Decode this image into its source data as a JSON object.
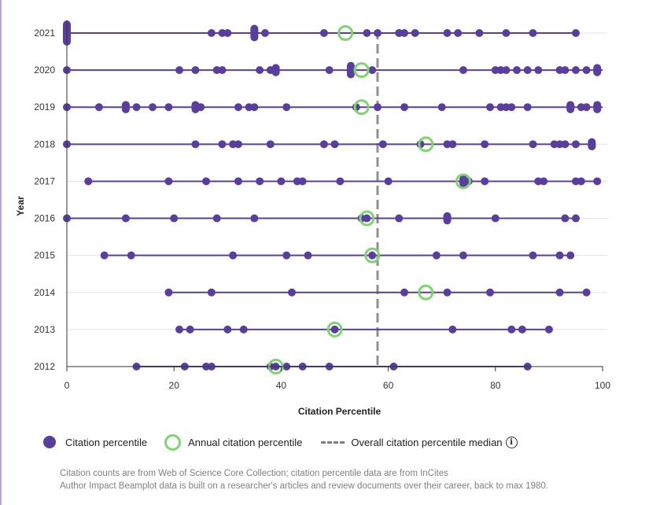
{
  "chart_data": {
    "type": "scatter",
    "title": "",
    "xlabel": "Citation Percentile",
    "ylabel": "Year",
    "xlim": [
      0,
      100
    ],
    "x_ticks": [
      "0",
      "20",
      "40",
      "60",
      "80",
      "100"
    ],
    "categories": [
      "2021",
      "2020",
      "2019",
      "2018",
      "2017",
      "2016",
      "2015",
      "2014",
      "2013",
      "2012"
    ],
    "median": 58,
    "colors": {
      "point": "#5a3e9e",
      "line": "#5a3e9e",
      "annual": "#7ed56f",
      "median": "#909090",
      "grid": "#e3e3e3"
    },
    "series": [
      {
        "year": "2021",
        "annual": 52,
        "range": [
          0,
          95
        ],
        "points": [
          0,
          0,
          0,
          0,
          0,
          27,
          29,
          30,
          35,
          35,
          35,
          37,
          48,
          56,
          58,
          62,
          63,
          65,
          71,
          73,
          77,
          82,
          87,
          95
        ]
      },
      {
        "year": "2020",
        "annual": 55,
        "range": [
          0,
          100
        ],
        "points": [
          0,
          21,
          24,
          28,
          29,
          36,
          38,
          39,
          39,
          49,
          53,
          53,
          53,
          57,
          74,
          80,
          81,
          82,
          84,
          86,
          88,
          92,
          93,
          95,
          97,
          99,
          99
        ]
      },
      {
        "year": "2019",
        "annual": 55,
        "range": [
          0,
          100
        ],
        "points": [
          0,
          6,
          11,
          11,
          13,
          16,
          19,
          24,
          24,
          25,
          32,
          34,
          35,
          41,
          54,
          58,
          63,
          70,
          79,
          81,
          82,
          83,
          86,
          94,
          94,
          96,
          97,
          99,
          99
        ]
      },
      {
        "year": "2018",
        "annual": 67,
        "range": [
          0,
          98
        ],
        "points": [
          0,
          24,
          29,
          31,
          32,
          38,
          48,
          50,
          59,
          66,
          71,
          72,
          78,
          87,
          91,
          92,
          93,
          95,
          98,
          98
        ]
      },
      {
        "year": "2017",
        "annual": 74,
        "range": [
          4,
          99
        ],
        "points": [
          4,
          19,
          26,
          32,
          36,
          40,
          43,
          44,
          51,
          60,
          74,
          74,
          75,
          78,
          88,
          89,
          95,
          96,
          99
        ]
      },
      {
        "year": "2016",
        "annual": 56,
        "range": [
          0,
          95
        ],
        "points": [
          0,
          11,
          20,
          28,
          35,
          55,
          56,
          62,
          71,
          71,
          80,
          93,
          95
        ]
      },
      {
        "year": "2015",
        "annual": 57,
        "range": [
          7,
          94
        ],
        "points": [
          7,
          12,
          31,
          41,
          45,
          57,
          69,
          74,
          87,
          92,
          94
        ]
      },
      {
        "year": "2014",
        "annual": 67,
        "range": [
          19,
          97
        ],
        "points": [
          19,
          27,
          42,
          63,
          71,
          79,
          92,
          97
        ]
      },
      {
        "year": "2013",
        "annual": 50,
        "range": [
          21,
          90
        ],
        "points": [
          21,
          23,
          30,
          33,
          50,
          72,
          83,
          85,
          90
        ]
      },
      {
        "year": "2012",
        "annual": 39,
        "range": [
          13,
          86
        ],
        "points": [
          13,
          22,
          26,
          27,
          38,
          39,
          41,
          44,
          49,
          61,
          86
        ]
      }
    ]
  },
  "legend": {
    "citation_percentile": "Citation percentile",
    "annual_citation_percentile": "Annual citation percentile",
    "overall_median": "Overall citation percentile median",
    "info_icon": "i"
  },
  "footnote": {
    "line1": "Citation counts are from Web of Science Core Collection; citation percentile data are from InCites",
    "line2": "Author Impact Beamplot data is built on a researcher's articles and review documents over their career, back to max 1980."
  }
}
